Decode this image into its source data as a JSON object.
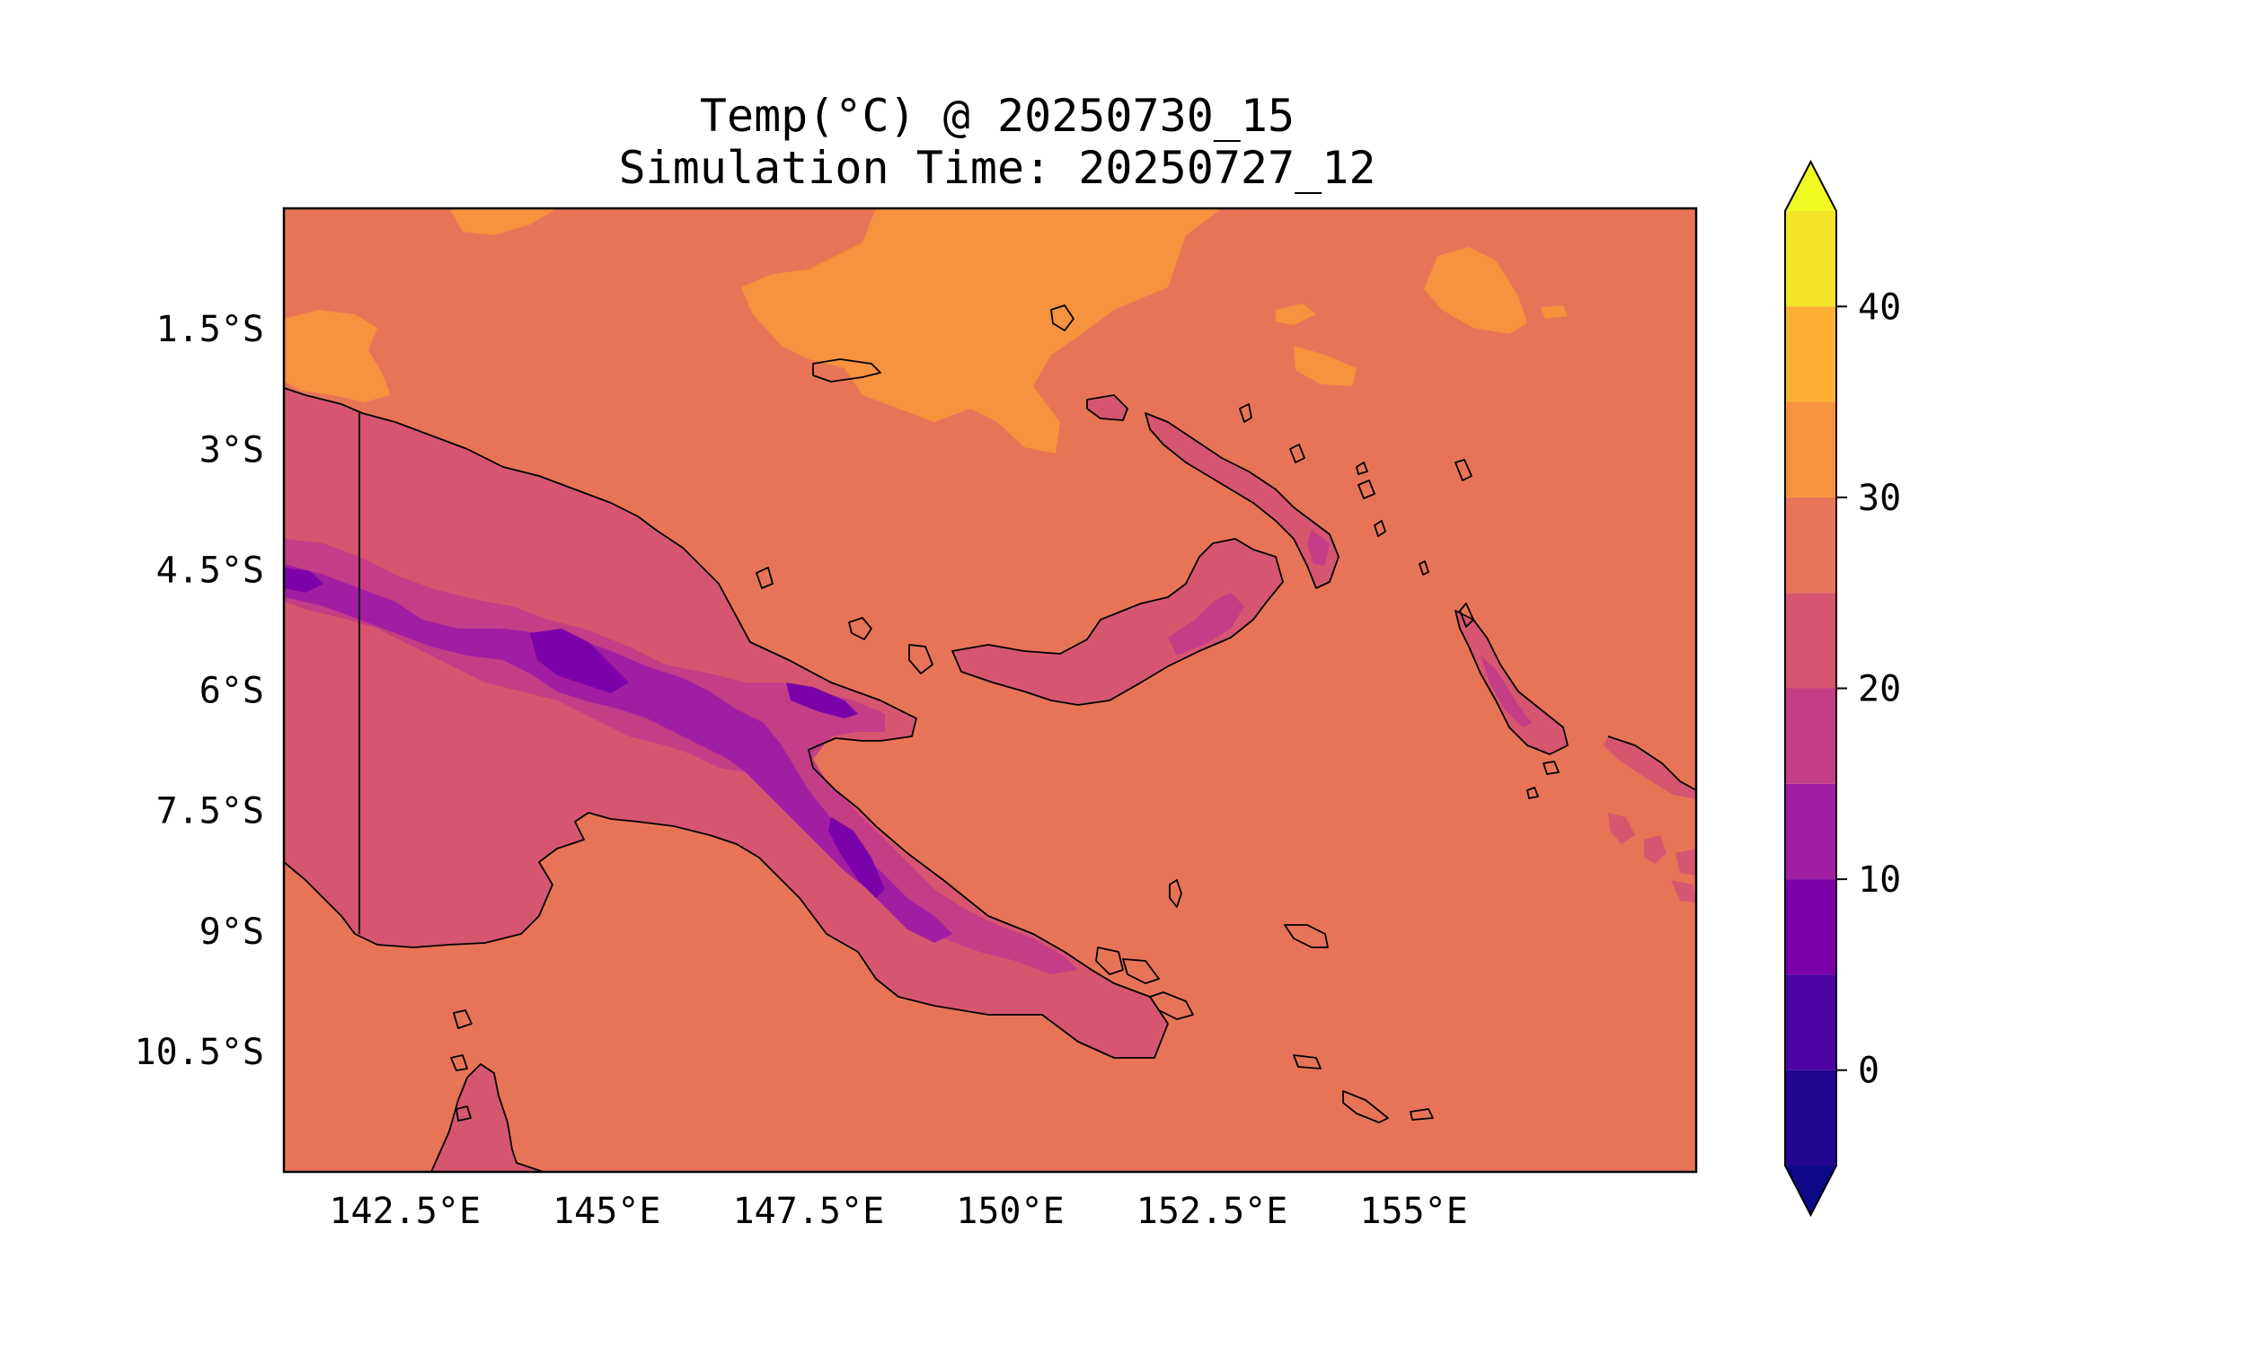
{
  "title": {
    "line1": "Temp(°C) @ 20250730_15",
    "line2": "Simulation Time: 20250727_12"
  },
  "map": {
    "lat_labels": [
      "1.5°S",
      "3°S",
      "4.5°S",
      "6°S",
      "7.5°S",
      "9°S",
      "10.5°S"
    ],
    "lat_values": [
      -1.5,
      -3,
      -4.5,
      -6,
      -7.5,
      -9,
      -10.5
    ],
    "lon_labels": [
      "142.5°E",
      "145°E",
      "147.5°E",
      "150°E",
      "152.5°E",
      "155°E"
    ],
    "lon_values": [
      142.5,
      145,
      147.5,
      150,
      152.5,
      155
    ],
    "lon_range": [
      141,
      158.5
    ],
    "lat_range": [
      -12,
      0
    ]
  },
  "colorbar": {
    "tick_labels": [
      "0",
      "10",
      "20",
      "30",
      "40"
    ],
    "tick_values": [
      0,
      10,
      20,
      30,
      40
    ],
    "range": [
      -5,
      45
    ],
    "extend": "both",
    "levels": [
      {
        "from": -5,
        "to": 0,
        "color": "#22068f"
      },
      {
        "from": 0,
        "to": 5,
        "color": "#4b03a1"
      },
      {
        "from": 5,
        "to": 10,
        "color": "#7a02a8"
      },
      {
        "from": 10,
        "to": 15,
        "color": "#a11ea3"
      },
      {
        "from": 15,
        "to": 20,
        "color": "#c33d87"
      },
      {
        "from": 20,
        "to": 25,
        "color": "#d6566f"
      },
      {
        "from": 25,
        "to": 30,
        "color": "#e87458"
      },
      {
        "from": 30,
        "to": 35,
        "color": "#f7923f"
      },
      {
        "from": 35,
        "to": 40,
        "color": "#fcb033"
      },
      {
        "from": 40,
        "to": 45,
        "color": "#f3e429"
      }
    ],
    "under_color": "#0d0887",
    "over_color": "#f0f921"
  },
  "colors": {
    "ocean": "#e87458",
    "warm": "#f7923f",
    "land": "#d6566f",
    "highland": "#c33d87",
    "mountain": "#a11ea3",
    "peak": "#7a02a8"
  }
}
